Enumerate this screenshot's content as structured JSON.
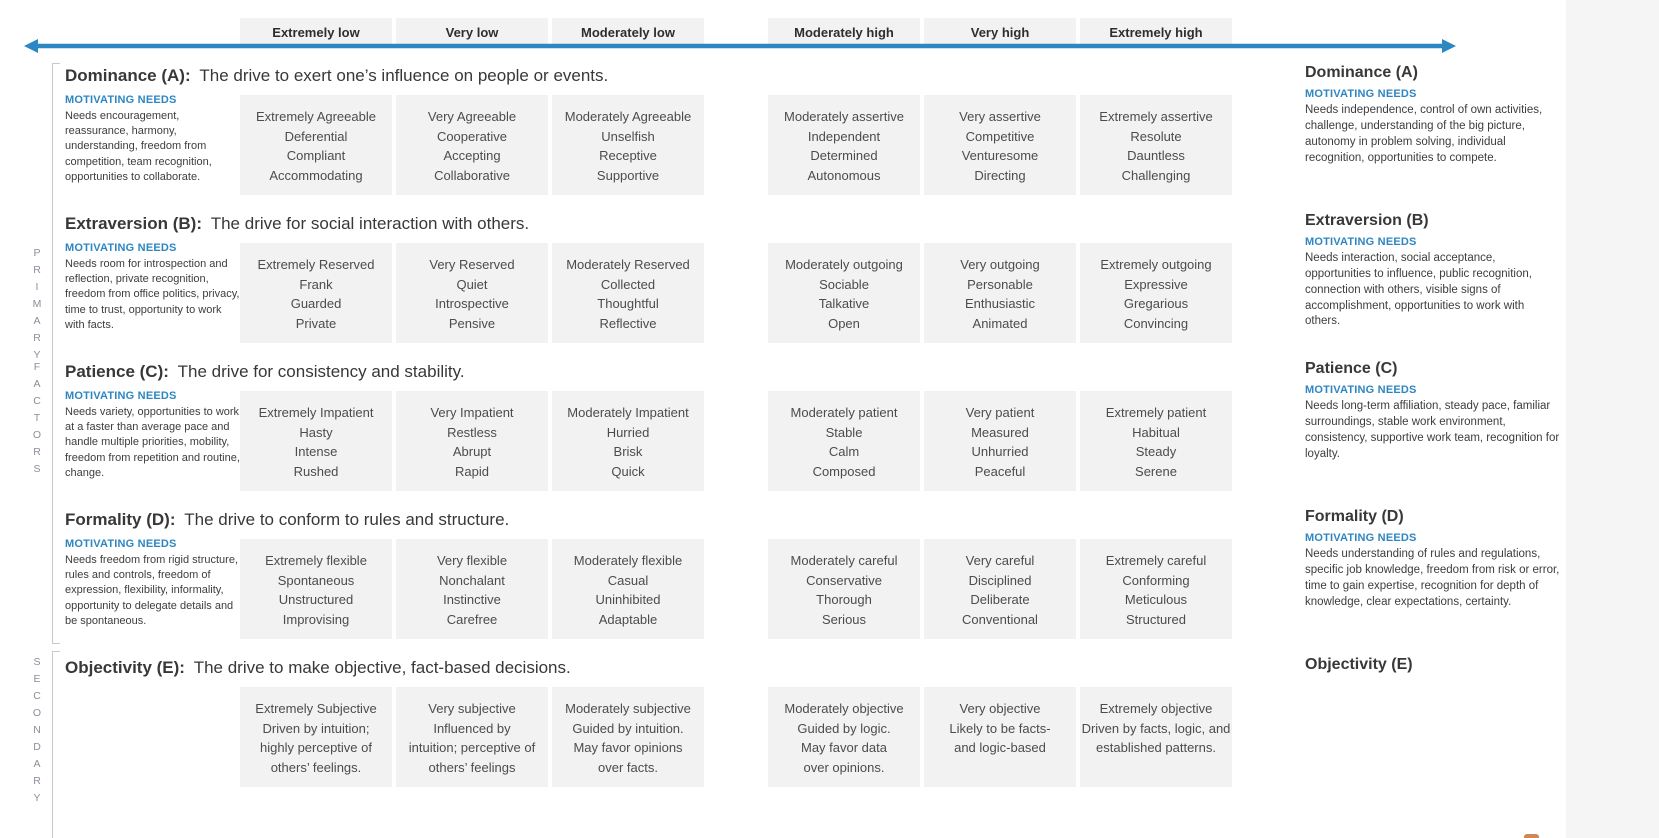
{
  "colors": {
    "accent_blue": "#2E86C1",
    "arrow_blue": "#2D87C3",
    "box_gray": "#F2F2F2",
    "side_label_gray": "#8D8D9C"
  },
  "header": {
    "columns": [
      "Extremely low",
      "Very low",
      "Moderately low",
      "Moderately high",
      "Very high",
      "Extremely high"
    ]
  },
  "side_labels": {
    "primary_word1": "PRIMARY",
    "primary_word2": "FACTORS",
    "secondary": "SECONDARY"
  },
  "factors": [
    {
      "letter": "A",
      "title_bold": "Dominance (A):",
      "title_rest": "The drive to exert one’s influence on people or events.",
      "left": {
        "heading": "MOTIVATING NEEDS",
        "text": "Needs encouragement, reassurance, harmony, understanding, freedom from competition, team recognition, opportunities to collaborate."
      },
      "right": {
        "title": "Dominance (A)",
        "heading": "MOTIVATING NEEDS",
        "text": "Needs independence, control of own activities, challenge, understanding of the big picture, autonomy in problem solving, individual recognition, opportunities to compete."
      },
      "cells": [
        [
          "Extremely Agreeable",
          "Deferential",
          "Compliant",
          "Accommodating"
        ],
        [
          "Very Agreeable",
          "Cooperative",
          "Accepting",
          "Collaborative"
        ],
        [
          "Moderately Agreeable",
          "Unselfish",
          "Receptive",
          "Supportive"
        ],
        [
          "Moderately assertive",
          "Independent",
          "Determined",
          "Autonomous"
        ],
        [
          "Very assertive",
          "Competitive",
          "Venturesome",
          "Directing"
        ],
        [
          "Extremely assertive",
          "Resolute",
          "Dauntless",
          "Challenging"
        ]
      ]
    },
    {
      "letter": "B",
      "title_bold": "Extraversion (B):",
      "title_rest": "The drive for social interaction with others.",
      "left": {
        "heading": "MOTIVATING NEEDS",
        "text": "Needs room for introspection and reflection, private recognition, freedom from office politics, privacy, time to trust, opportunity to work with facts."
      },
      "right": {
        "title": "Extraversion (B)",
        "heading": "MOTIVATING NEEDS",
        "text": "Needs interaction, social acceptance, opportunities to influence, public recognition, connection with others, visible signs of accomplishment, opportunities to work with others."
      },
      "cells": [
        [
          "Extremely Reserved",
          "Frank",
          "Guarded",
          "Private"
        ],
        [
          "Very Reserved",
          "Quiet",
          "Introspective",
          "Pensive"
        ],
        [
          "Moderately Reserved",
          "Collected",
          "Thoughtful",
          "Reflective"
        ],
        [
          "Moderately outgoing",
          "Sociable",
          "Talkative",
          "Open"
        ],
        [
          "Very outgoing",
          "Personable",
          "Enthusiastic",
          "Animated"
        ],
        [
          "Extremely outgoing",
          "Expressive",
          "Gregarious",
          "Convincing"
        ]
      ]
    },
    {
      "letter": "C",
      "title_bold": "Patience (C):",
      "title_rest": "The drive for consistency and stability.",
      "left": {
        "heading": "MOTIVATING NEEDS",
        "text": "Needs variety, opportunities to work at a faster than average pace and handle multiple priorities, mobility, freedom from repetition and routine, change."
      },
      "right": {
        "title": "Patience (C)",
        "heading": "MOTIVATING NEEDS",
        "text": "Needs long-term affiliation, steady pace, familiar surroundings, stable work environment, consistency, supportive work team, recognition for loyalty."
      },
      "cells": [
        [
          "Extremely Impatient",
          "Hasty",
          "Intense",
          "Rushed"
        ],
        [
          "Very Impatient",
          "Restless",
          "Abrupt",
          "Rapid"
        ],
        [
          "Moderately Impatient",
          "Hurried",
          "Brisk",
          "Quick"
        ],
        [
          "Moderately patient",
          "Stable",
          "Calm",
          "Composed"
        ],
        [
          "Very patient",
          "Measured",
          "Unhurried",
          "Peaceful"
        ],
        [
          "Extremely patient",
          "Habitual",
          "Steady",
          "Serene"
        ]
      ]
    },
    {
      "letter": "D",
      "title_bold": "Formality (D):",
      "title_rest": "The drive to conform to rules and structure.",
      "left": {
        "heading": "MOTIVATING NEEDS",
        "text": "Needs freedom from rigid structure, rules and controls, freedom of expression, flexibility, informality, opportunity to delegate details and be spontaneous."
      },
      "right": {
        "title": "Formality (D)",
        "heading": "MOTIVATING NEEDS",
        "text": "Needs understanding of rules and regulations, specific job knowledge, freedom from risk or error, time to gain expertise, recognition for depth of knowledge, clear expectations, certainty."
      },
      "cells": [
        [
          "Extremely flexible",
          "Spontaneous",
          "Unstructured",
          "Improvising"
        ],
        [
          "Very flexible",
          "Nonchalant",
          "Instinctive",
          "Carefree"
        ],
        [
          "Moderately flexible",
          "Casual",
          "Uninhibited",
          "Adaptable"
        ],
        [
          "Moderately careful",
          "Conservative",
          "Thorough",
          "Serious"
        ],
        [
          "Very careful",
          "Disciplined",
          "Deliberate",
          "Conventional"
        ],
        [
          "Extremely careful",
          "Conforming",
          "Meticulous",
          "Structured"
        ]
      ]
    },
    {
      "letter": "E",
      "title_bold": "Objectivity (E):",
      "title_rest": "The drive to make objective, fact-based decisions.",
      "left": null,
      "right": {
        "title": "Objectivity (E)",
        "heading": null,
        "text": null
      },
      "cells": [
        [
          "Extremely Subjective",
          "Driven by intuition;",
          "highly perceptive of",
          "others’ feelings."
        ],
        [
          "Very subjective",
          "Influenced by",
          "intuition; perceptive of",
          "others’ feelings"
        ],
        [
          "Moderately subjective",
          "Guided by intuition.",
          "May favor opinions",
          "over facts."
        ],
        [
          "Moderately objective",
          "Guided by logic.",
          "May favor data",
          "over opinions."
        ],
        [
          "Very objective",
          "Likely to be facts-",
          "and logic-based"
        ],
        [
          "Extremely objective",
          "Driven by facts, logic, and",
          "established patterns."
        ]
      ]
    }
  ]
}
